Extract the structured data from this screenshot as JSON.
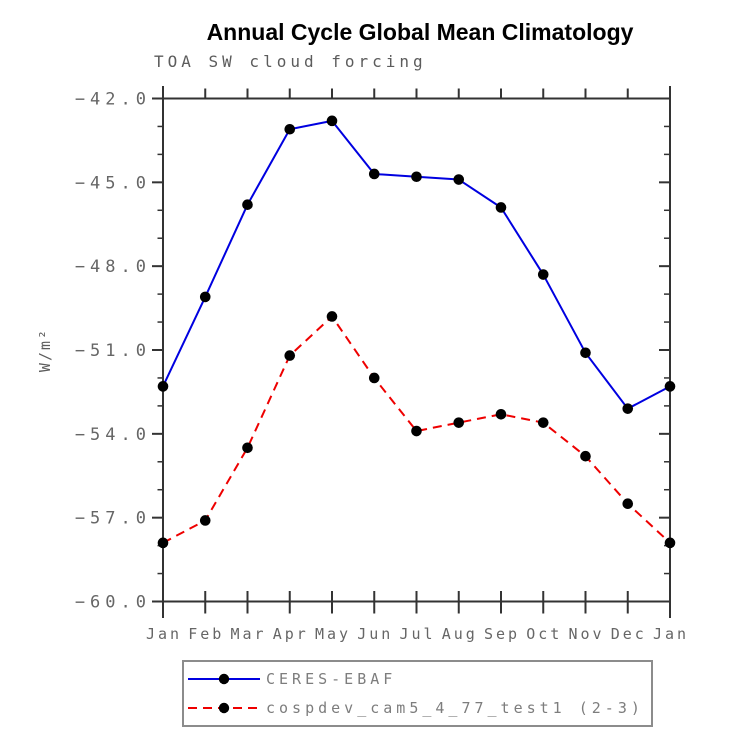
{
  "chart_data": {
    "type": "line",
    "title": "Annual Cycle Global Mean Climatology",
    "subtitle": "TOA SW cloud forcing",
    "ylabel": "W/m²",
    "xlabel": "",
    "x_tick_labels": [
      "Jan",
      "Feb",
      "Mar",
      "Apr",
      "May",
      "Jun",
      "Jul",
      "Aug",
      "Sep",
      "Oct",
      "Nov",
      "Dec",
      "Jan"
    ],
    "y_tick_labels": [
      "−42.0",
      "−45.0",
      "−48.0",
      "−51.0",
      "−54.0",
      "−57.0",
      "−60.0"
    ],
    "ylim": [
      -60,
      -42
    ],
    "y_major_step": 3,
    "y_minor_step": 1,
    "grid": false,
    "legend_position": "bottom",
    "series": [
      {
        "name": "CERES-EBAF",
        "color": "#0000e0",
        "line_style": "solid",
        "marker": "circle",
        "values": [
          -52.3,
          -49.1,
          -45.8,
          -43.1,
          -42.8,
          -44.7,
          -44.8,
          -44.9,
          -45.9,
          -48.3,
          -51.1,
          -53.1,
          -52.3
        ]
      },
      {
        "name": "cospdev_cam5_4_77_test1 (2-3)",
        "color": "#ee0000",
        "line_style": "dashed",
        "marker": "circle",
        "values": [
          -57.9,
          -57.1,
          -54.5,
          -51.2,
          -49.8,
          -52.0,
          -53.9,
          -53.6,
          -53.3,
          -53.6,
          -54.8,
          -56.5,
          -57.9
        ]
      }
    ]
  },
  "colors": {
    "background": "#ffffff",
    "axis": "#333333",
    "tick_label": "#666666",
    "title": "#000000",
    "subtitle": "#5c5c5c",
    "marker": "#000000",
    "series_1": "#0000e0",
    "series_2": "#ee0000",
    "legend_border": "#8c8c8c",
    "legend_label": "#7d7d7d"
  }
}
